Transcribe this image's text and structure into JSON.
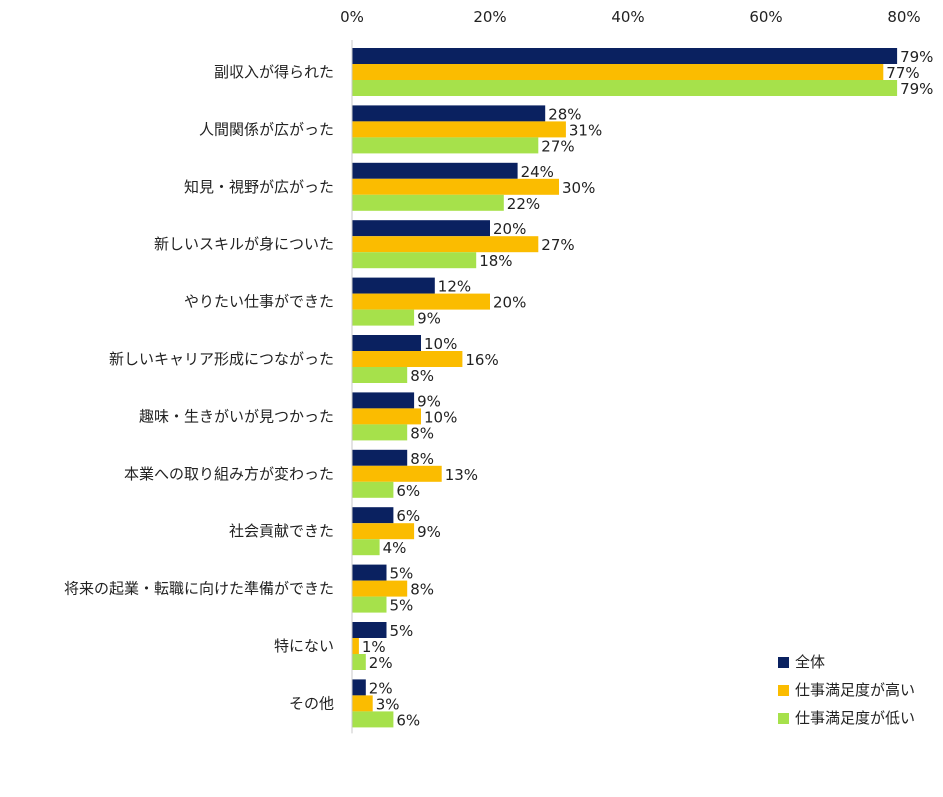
{
  "chart_data": {
    "type": "bar",
    "orientation": "horizontal",
    "title": "",
    "xlabel": "",
    "ylabel": "",
    "xlim": [
      0,
      80
    ],
    "x_ticks": [
      "0%",
      "20%",
      "40%",
      "60%",
      "80%"
    ],
    "x_tick_values": [
      0,
      20,
      40,
      60,
      80
    ],
    "grid": false,
    "legend_position": "bottom-right",
    "value_suffix": "%",
    "categories": [
      "副収入が得られた",
      "人間関係が広がった",
      "知見・視野が広がった",
      "新しいスキルが身についた",
      "やりたい仕事ができた",
      "新しいキャリア形成につながった",
      "趣味・生きがいが見つかった",
      "本業への取り組み方が変わった",
      "社会貢献できた",
      "将来の起業・転職に向けた準備ができた",
      "特にない",
      "その他"
    ],
    "series": [
      {
        "name": "全体",
        "color": "#0a2160",
        "values": [
          79,
          28,
          24,
          20,
          12,
          10,
          9,
          8,
          6,
          5,
          5,
          2
        ]
      },
      {
        "name": "仕事満足度が高い",
        "color": "#fbbc00",
        "values": [
          77,
          31,
          30,
          27,
          20,
          16,
          10,
          13,
          9,
          8,
          1,
          3
        ]
      },
      {
        "name": "仕事満足度が低い",
        "color": "#a6e14b",
        "values": [
          79,
          27,
          22,
          18,
          9,
          8,
          8,
          6,
          4,
          5,
          2,
          6
        ]
      }
    ]
  }
}
